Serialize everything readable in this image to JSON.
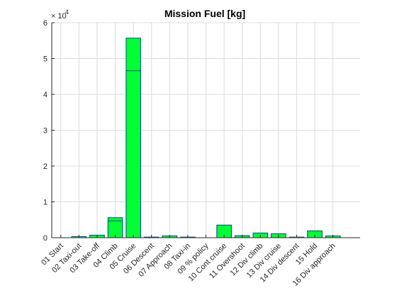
{
  "chart_data": {
    "type": "bar",
    "title": "Mission Fuel [kg]",
    "xlabel": "",
    "ylabel": "",
    "y_multiplier_label": {
      "base": "× 10",
      "exponent": "4"
    },
    "ylim": [
      0,
      60000
    ],
    "y_ticks": [
      0,
      10000,
      20000,
      30000,
      40000,
      50000,
      60000
    ],
    "y_tick_labels": [
      "0",
      "1",
      "2",
      "3",
      "4",
      "5",
      "6"
    ],
    "grid": true,
    "categories": [
      "01 Start",
      "02 Taxi-out",
      "03 Take-off",
      "04 Climb",
      "05 Cruise",
      "06 Descent",
      "07 Approach",
      "08 Taxi-in",
      "09 % policy",
      "10 Cont cruise",
      "11 Overshoot",
      "12 Div climb",
      "13 Div cruise",
      "14 Div descent",
      "15 Hold",
      "16 Div approach"
    ],
    "series": [
      {
        "values": [
          0,
          300,
          700,
          5600,
          55700,
          150,
          500,
          150,
          0,
          3500,
          550,
          1300,
          1100,
          150,
          1900,
          500
        ],
        "color": "#00ff33"
      },
      {
        "values": [
          0,
          300,
          700,
          4700,
          46600,
          150,
          500,
          150,
          0,
          3500,
          550,
          1300,
          1100,
          150,
          1900,
          500
        ],
        "color": "#00ff33"
      }
    ],
    "colors": {
      "bar_fill": "#00ff33",
      "bar_edge": "#0a4d8c",
      "grid": "#dcdcdc",
      "axis": "#262626"
    }
  }
}
